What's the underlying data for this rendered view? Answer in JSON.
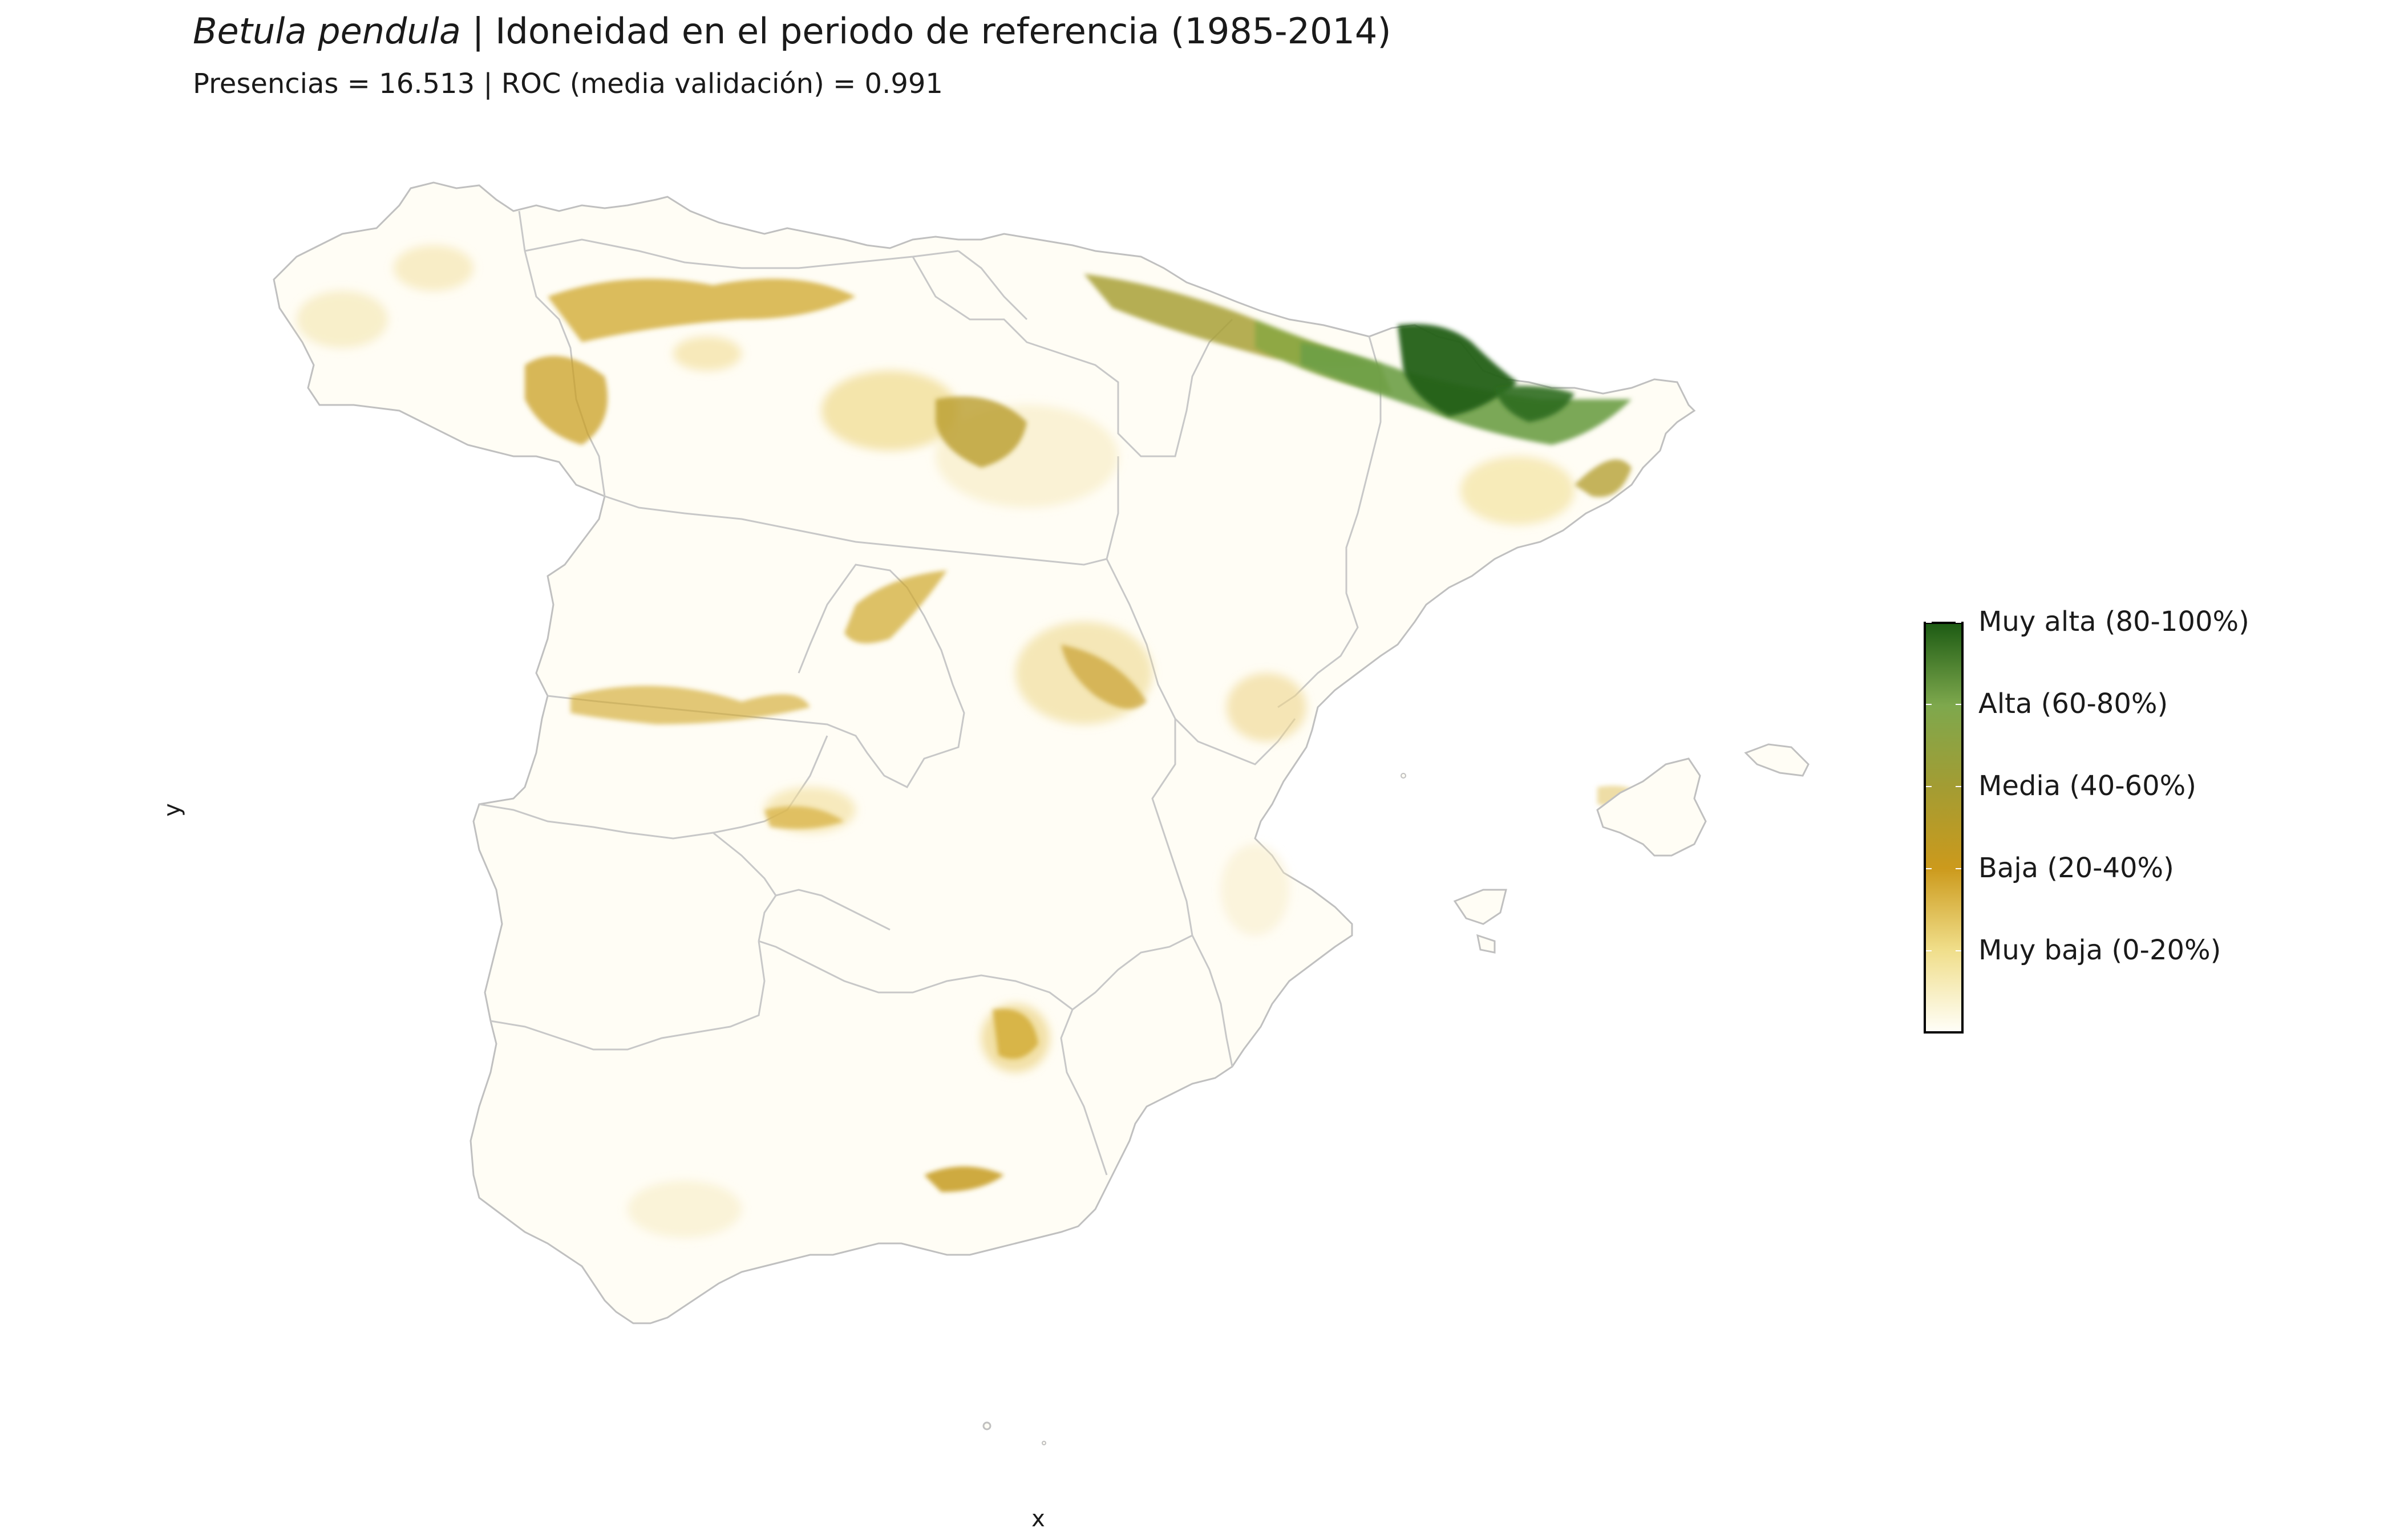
{
  "header": {
    "title_species": "Betula pendula",
    "title_rest": " | Idoneidad en el periodo de referencia (1985-2014)",
    "subtitle": "Presencias = 16.513  |  ROC (media validación) = 0.991"
  },
  "axes": {
    "x_label": "x",
    "y_label": "y"
  },
  "legend": {
    "colors": {
      "muy_alta": "#1e5c14",
      "alta": "#7ea84d",
      "media": "#a39c33",
      "baja": "#cc9a1c",
      "muy_baja": "#f0de8a",
      "nula": "#fffef7"
    },
    "labels": [
      "Muy alta (80-100%)",
      "Alta (60-80%)",
      "Media (40-60%)",
      "Baja (20-40%)",
      "Muy baja (0-20%)"
    ]
  },
  "map": {
    "land_fill": "#fffdf5",
    "border_color": "#c0c0c0",
    "suitability_layer": "Betula pendula suitability raster"
  }
}
